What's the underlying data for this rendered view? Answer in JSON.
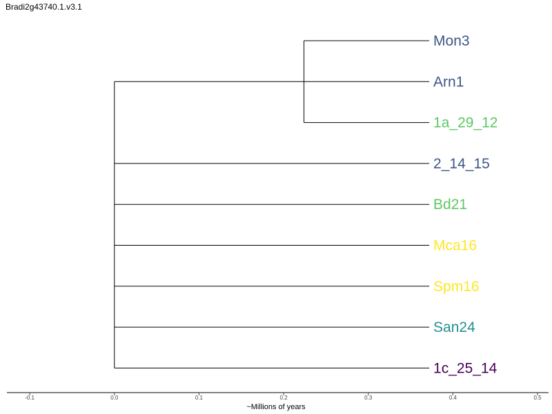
{
  "title": "Bradi2g43740.1.v3.1",
  "tree": {
    "root_x": 0.0,
    "leaf_x": 0.372,
    "leaves": [
      {
        "name": "Mon3",
        "color": "#3e5688"
      },
      {
        "name": "Arn1",
        "color": "#3e5688"
      },
      {
        "name": "1a_29_12",
        "color": "#5cc863"
      },
      {
        "name": "2_14_15",
        "color": "#3e5688"
      },
      {
        "name": "Bd21",
        "color": "#5cc863"
      },
      {
        "name": "Mca16",
        "color": "#fde725"
      },
      {
        "name": "Spm16",
        "color": "#fde725"
      },
      {
        "name": "San24",
        "color": "#21908d"
      },
      {
        "name": "1c_25_14",
        "color": "#440154"
      }
    ],
    "internal_nodes": [
      {
        "x": 0.224,
        "children_leaves": [
          "Mon3",
          "1a_29_12"
        ]
      }
    ],
    "line_color": "#000000"
  },
  "axis": {
    "label": "~Millions of years",
    "min": -0.127,
    "max": 0.513,
    "ticks": [
      "-0.1",
      "0.0",
      "0.1",
      "0.2",
      "0.3",
      "0.4",
      "0.5"
    ]
  }
}
